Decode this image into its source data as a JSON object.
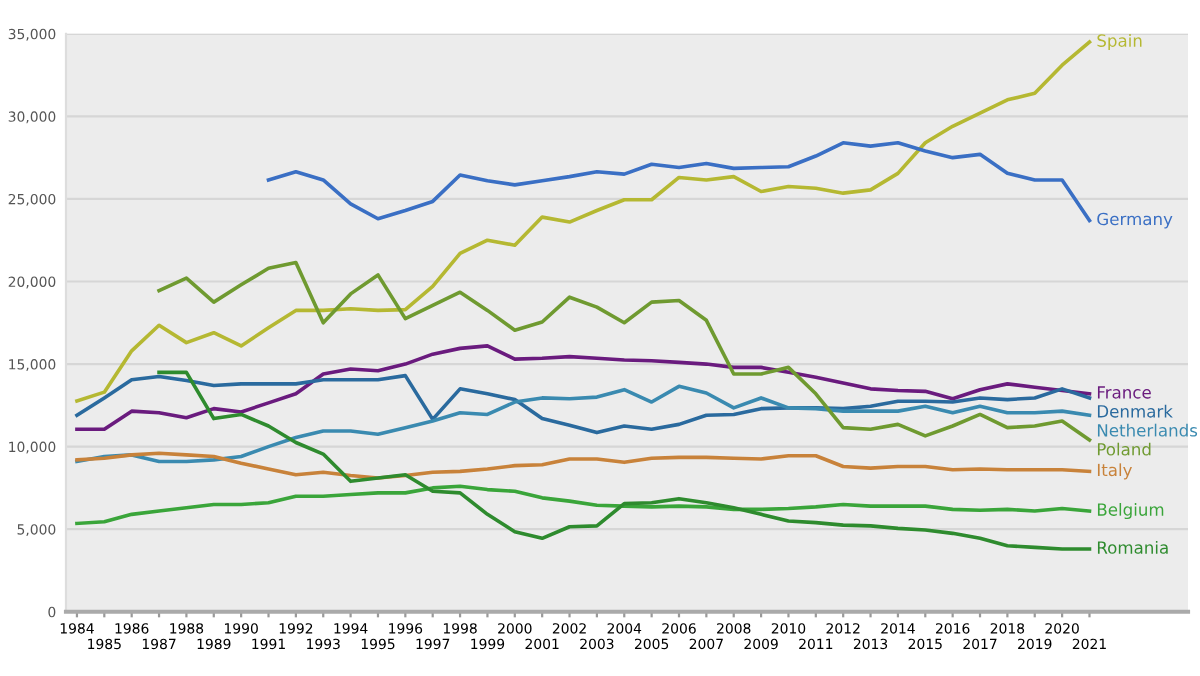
{
  "chart_data": {
    "type": "line",
    "categories": [
      "1984",
      "1985",
      "1986",
      "1987",
      "1988",
      "1989",
      "1990",
      "1991",
      "1992",
      "1993",
      "1994",
      "1995",
      "1996",
      "1997",
      "1998",
      "1999",
      "2000",
      "2001",
      "2002",
      "2003",
      "2004",
      "2005",
      "2006",
      "2007",
      "2008",
      "2009",
      "2010",
      "2011",
      "2012",
      "2013",
      "2014",
      "2015",
      "2016",
      "2017",
      "2018",
      "2019",
      "2020",
      "2021"
    ],
    "ylim": [
      0,
      35000
    ],
    "yticks": [
      {
        "value": 0,
        "label": "0"
      },
      {
        "value": 5000,
        "label": "5,000"
      },
      {
        "value": 10000,
        "label": "10,000"
      },
      {
        "value": 15000,
        "label": "15,000"
      },
      {
        "value": 20000,
        "label": "20,000"
      },
      {
        "value": 25000,
        "label": "25,000"
      },
      {
        "value": 30000,
        "label": "30,000"
      },
      {
        "value": 35000,
        "label": "35,000"
      }
    ],
    "grid": "y",
    "marker": "none",
    "line_style": "solid",
    "series": [
      {
        "name": "Spain",
        "color": "#b5b832",
        "values": [
          12770,
          13300,
          15800,
          17350,
          16300,
          16900,
          16100,
          17200,
          18250,
          18250,
          18350,
          18250,
          18300,
          19700,
          21700,
          22500,
          22200,
          23900,
          23600,
          24300,
          24950,
          24950,
          26300,
          26150,
          26350,
          25450,
          25750,
          25650,
          25350,
          25550,
          26550,
          28400,
          29400,
          30200,
          31000,
          31400,
          33100,
          34500
        ]
      },
      {
        "name": "Germany",
        "color": "#3a6fc4",
        "values": [
          null,
          null,
          null,
          null,
          null,
          null,
          null,
          26150,
          26650,
          26150,
          24700,
          23800,
          24300,
          24850,
          26450,
          26100,
          25850,
          26100,
          26350,
          26650,
          26500,
          27100,
          26900,
          27150,
          26850,
          26900,
          26950,
          27600,
          28400,
          28200,
          28400,
          27900,
          27500,
          27700,
          26550,
          26150,
          26150,
          23700
        ]
      },
      {
        "name": "France",
        "color": "#6a1b7e",
        "values": [
          11050,
          11050,
          12150,
          12050,
          11750,
          12300,
          12100,
          12650,
          13200,
          14400,
          14700,
          14600,
          15000,
          15600,
          15950,
          16100,
          15300,
          15350,
          15450,
          15350,
          15250,
          15200,
          15100,
          15000,
          14800,
          14800,
          14500,
          14200,
          13850,
          13500,
          13400,
          13350,
          12900,
          13450,
          13800,
          13600,
          13400,
          13200
        ]
      },
      {
        "name": "Denmark",
        "color": "#2a6a9e",
        "values": [
          11900,
          12950,
          14050,
          14250,
          14000,
          13700,
          13800,
          13800,
          13800,
          14050,
          14050,
          14050,
          14300,
          11650,
          13500,
          13200,
          12850,
          11700,
          11300,
          10850,
          11250,
          11050,
          11350,
          11900,
          11950,
          12300,
          12350,
          12350,
          12300,
          12450,
          12750,
          12750,
          12700,
          12950,
          12850,
          12950,
          13500,
          12950
        ]
      },
      {
        "name": "Netherlands",
        "color": "#3a8ab0",
        "values": [
          9100,
          9400,
          9500,
          9100,
          9100,
          9200,
          9400,
          10000,
          10550,
          10950,
          10950,
          10750,
          11150,
          11550,
          12050,
          11950,
          12700,
          12950,
          12900,
          13000,
          13450,
          12700,
          13650,
          13250,
          12350,
          12950,
          12350,
          12300,
          12150,
          12150,
          12150,
          12450,
          12050,
          12450,
          12050,
          12050,
          12150,
          11900
        ]
      },
      {
        "name": "Poland",
        "color": "#6f9a30",
        "values": [
          null,
          null,
          null,
          19450,
          20200,
          18750,
          19800,
          20800,
          21150,
          17500,
          19250,
          20400,
          17750,
          18550,
          19350,
          18250,
          17050,
          17550,
          19050,
          18450,
          17500,
          18750,
          18850,
          17650,
          14400,
          14400,
          14800,
          13200,
          11150,
          11050,
          11350,
          10650,
          11250,
          11950,
          11150,
          11250,
          11550,
          10400
        ]
      },
      {
        "name": "Italy",
        "color": "#c8823a",
        "values": [
          9200,
          9300,
          9500,
          9600,
          9500,
          9400,
          9000,
          8650,
          8300,
          8450,
          8250,
          8100,
          8250,
          8450,
          8500,
          8650,
          8850,
          8900,
          9250,
          9250,
          9050,
          9300,
          9350,
          9350,
          9300,
          9250,
          9450,
          9450,
          8800,
          8700,
          8800,
          8800,
          8600,
          8650,
          8600,
          8600,
          8600,
          8500
        ]
      },
      {
        "name": "Belgium",
        "color": "#3aa53a",
        "values": [
          5350,
          5450,
          5900,
          6100,
          6300,
          6500,
          6500,
          6600,
          7000,
          7000,
          7100,
          7200,
          7200,
          7500,
          7600,
          7400,
          7300,
          6900,
          6700,
          6450,
          6400,
          6350,
          6400,
          6350,
          6200,
          6200,
          6250,
          6350,
          6500,
          6400,
          6400,
          6400,
          6200,
          6150,
          6200,
          6100,
          6250,
          6100
        ]
      },
      {
        "name": "Romania",
        "color": "#2e8b2e",
        "values": [
          null,
          null,
          null,
          14500,
          14500,
          11700,
          11950,
          11250,
          10250,
          9550,
          7900,
          8100,
          8300,
          7300,
          7200,
          5900,
          4850,
          4450,
          5150,
          5200,
          6550,
          6600,
          6850,
          6600,
          6300,
          5900,
          5500,
          5400,
          5250,
          5200,
          5050,
          4950,
          4750,
          4450,
          4000,
          3900,
          3800,
          3800
        ]
      }
    ]
  }
}
